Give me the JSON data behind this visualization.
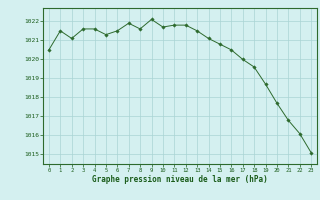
{
  "hours": [
    0,
    1,
    2,
    3,
    4,
    5,
    6,
    7,
    8,
    9,
    10,
    11,
    12,
    13,
    14,
    15,
    16,
    17,
    18,
    19,
    20,
    21,
    22,
    23
  ],
  "pressure": [
    1020.5,
    1021.5,
    1021.1,
    1021.6,
    1021.6,
    1021.3,
    1021.5,
    1021.9,
    1021.6,
    1022.1,
    1021.7,
    1021.8,
    1021.8,
    1021.5,
    1021.1,
    1020.8,
    1020.5,
    1020.0,
    1019.6,
    1018.7,
    1017.7,
    1016.8,
    1016.1,
    1015.1
  ],
  "line_color": "#2d6a2d",
  "marker": "D",
  "marker_size": 1.8,
  "bg_color": "#d4f0f0",
  "grid_color": "#aad4d4",
  "xlabel": "Graphe pression niveau de la mer (hPa)",
  "xlabel_color": "#1a5c1a",
  "tick_color": "#1a5c1a",
  "ylim": [
    1014.5,
    1022.7
  ],
  "yticks": [
    1015,
    1016,
    1017,
    1018,
    1019,
    1020,
    1021,
    1022
  ],
  "xticks": [
    0,
    1,
    2,
    3,
    4,
    5,
    6,
    7,
    8,
    9,
    10,
    11,
    12,
    13,
    14,
    15,
    16,
    17,
    18,
    19,
    20,
    21,
    22,
    23
  ],
  "border_color": "#2d6a2d"
}
